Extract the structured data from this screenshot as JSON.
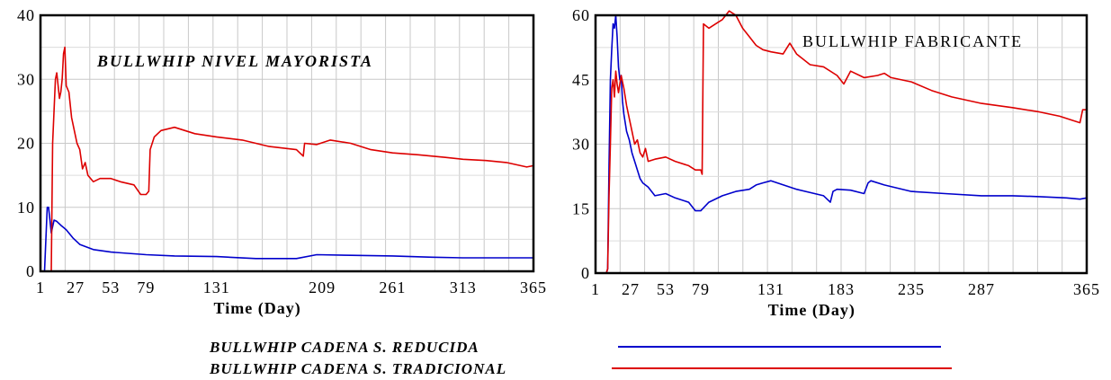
{
  "legend": [
    {
      "label": "BULLWHIP CADENA S. REDUCIDA",
      "color": "#0000cc"
    },
    {
      "label": "BULLWHIP CADENA S. TRADICIONAL",
      "color": "#dd0000"
    }
  ],
  "chart_data": [
    {
      "type": "line",
      "title": "BULLWHIP NIVEL MAYORISTA",
      "xlabel": "Time (Day)",
      "ylabel": "",
      "xlim": [
        1,
        365
      ],
      "ylim": [
        0,
        40
      ],
      "xticks": [
        1,
        27,
        53,
        79,
        131,
        209,
        261,
        313,
        365
      ],
      "yticks": [
        0,
        10,
        20,
        30,
        40
      ],
      "series": [
        {
          "name": "BULLWHIP CADENA S. REDUCIDA",
          "color": "#0000cc",
          "x": [
            1,
            4,
            6,
            7,
            9,
            11,
            13,
            16,
            20,
            25,
            30,
            40,
            53,
            79,
            100,
            131,
            160,
            190,
            205,
            230,
            261,
            290,
            313,
            340,
            365
          ],
          "y": [
            0,
            0,
            10,
            10,
            6,
            8,
            7.8,
            7.2,
            6.5,
            5.2,
            4.2,
            3.4,
            3.0,
            2.6,
            2.4,
            2.3,
            2.0,
            2.0,
            2.6,
            2.5,
            2.4,
            2.2,
            2.1,
            2.1,
            2.1
          ]
        },
        {
          "name": "BULLWHIP CADENA S. TRADICIONAL",
          "color": "#dd0000",
          "x": [
            1,
            7,
            9,
            10,
            12,
            13,
            15,
            16,
            17,
            18,
            19,
            20,
            22,
            24,
            26,
            28,
            30,
            32,
            34,
            36,
            40,
            45,
            53,
            60,
            70,
            75,
            79,
            81,
            82,
            85,
            90,
            100,
            115,
            131,
            150,
            170,
            190,
            195,
            196,
            205,
            215,
            230,
            245,
            261,
            280,
            300,
            313,
            330,
            345,
            360,
            365
          ],
          "y": [
            0,
            0,
            0,
            20,
            30,
            31,
            27,
            28,
            30,
            34,
            35,
            29,
            28,
            24,
            22,
            20,
            19,
            16,
            17,
            15,
            14,
            14.5,
            14.5,
            14,
            13.5,
            12,
            12,
            12.5,
            19,
            21,
            22,
            22.5,
            21.5,
            21,
            20.5,
            19.5,
            19,
            18,
            20,
            19.8,
            20.5,
            20,
            19,
            18.5,
            18.2,
            17.8,
            17.5,
            17.3,
            17,
            16.3,
            16.5
          ]
        }
      ]
    },
    {
      "type": "line",
      "title": "BULLWHIP FABRICANTE",
      "xlabel": "Time (Day)",
      "ylabel": "",
      "xlim": [
        1,
        365
      ],
      "ylim": [
        0,
        60
      ],
      "xticks": [
        1,
        27,
        53,
        79,
        131,
        183,
        235,
        287,
        365
      ],
      "yticks": [
        0,
        15,
        30,
        45,
        60
      ],
      "series": [
        {
          "name": "BULLWHIP CADENA S. REDUCIDA",
          "color": "#0000cc",
          "x": [
            1,
            7,
            9,
            10,
            11,
            12,
            13,
            14,
            15,
            16,
            17,
            18,
            19,
            20,
            21,
            22,
            24,
            26,
            28,
            30,
            32,
            34,
            36,
            40,
            45,
            53,
            60,
            70,
            75,
            79,
            85,
            95,
            105,
            115,
            120,
            125,
            131,
            150,
            170,
            175,
            177,
            180,
            190,
            200,
            203,
            205,
            215,
            235,
            260,
            287,
            310,
            330,
            350,
            360,
            365
          ],
          "y": [
            0,
            0,
            0,
            1,
            25,
            45,
            52,
            58,
            57,
            60,
            55,
            48,
            45,
            46,
            40,
            37,
            33,
            31,
            28,
            26,
            24,
            22,
            21,
            20,
            18,
            18.5,
            17.5,
            16.5,
            14.5,
            14.5,
            16.5,
            18,
            19,
            19.5,
            20.5,
            21,
            21.5,
            19.5,
            18,
            16.5,
            19,
            19.5,
            19.3,
            18.5,
            21,
            21.5,
            20.5,
            19,
            18.5,
            18,
            18,
            17.8,
            17.5,
            17.2,
            17.5
          ]
        },
        {
          "name": "BULLWHIP CADENA S. TRADICIONAL",
          "color": "#dd0000",
          "x": [
            1,
            7,
            9,
            10,
            11,
            12,
            13,
            14,
            15,
            16,
            17,
            18,
            20,
            22,
            24,
            26,
            28,
            30,
            32,
            34,
            36,
            38,
            40,
            45,
            53,
            60,
            70,
            75,
            79,
            80,
            81,
            85,
            90,
            95,
            100,
            105,
            110,
            115,
            120,
            125,
            131,
            140,
            145,
            150,
            160,
            170,
            180,
            185,
            190,
            200,
            210,
            215,
            220,
            235,
            250,
            265,
            287,
            310,
            330,
            345,
            355,
            360,
            362,
            365
          ],
          "y": [
            0,
            0,
            0,
            1,
            18,
            30,
            43,
            45,
            41,
            47,
            44,
            42,
            46,
            43,
            39,
            36,
            33,
            30,
            31,
            28,
            27,
            29,
            26,
            26.5,
            27,
            26,
            25,
            24,
            24,
            23,
            58,
            57,
            58,
            59,
            61,
            60,
            57,
            55,
            53,
            52,
            51.5,
            51,
            53.5,
            51,
            48.5,
            48,
            46,
            44,
            47,
            45.5,
            46,
            46.5,
            45.5,
            44.5,
            42.5,
            41,
            39.5,
            38.5,
            37.5,
            36.5,
            35.5,
            35,
            38,
            38
          ]
        }
      ]
    }
  ]
}
